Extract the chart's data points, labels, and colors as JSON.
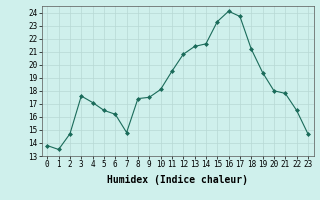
{
  "x": [
    0,
    1,
    2,
    3,
    4,
    5,
    6,
    7,
    8,
    9,
    10,
    11,
    12,
    13,
    14,
    15,
    16,
    17,
    18,
    19,
    20,
    21,
    22,
    23
  ],
  "y": [
    13.8,
    13.5,
    14.7,
    17.6,
    17.1,
    16.5,
    16.2,
    14.8,
    17.4,
    17.5,
    18.1,
    19.5,
    20.8,
    21.4,
    21.6,
    23.3,
    24.1,
    23.7,
    21.2,
    19.4,
    18.0,
    17.8,
    16.5,
    14.7
  ],
  "line_color": "#1a6b5a",
  "marker": "D",
  "marker_size": 2,
  "bg_color": "#cff0ec",
  "grid_color": "#b8d8d4",
  "xlabel": "Humidex (Indice chaleur)",
  "xlim": [
    -0.5,
    23.5
  ],
  "ylim": [
    13,
    24.5
  ],
  "yticks": [
    13,
    14,
    15,
    16,
    17,
    18,
    19,
    20,
    21,
    22,
    23,
    24
  ],
  "xticks": [
    0,
    1,
    2,
    3,
    4,
    5,
    6,
    7,
    8,
    9,
    10,
    11,
    12,
    13,
    14,
    15,
    16,
    17,
    18,
    19,
    20,
    21,
    22,
    23
  ],
  "tick_fontsize": 5.5,
  "xlabel_fontsize": 7
}
